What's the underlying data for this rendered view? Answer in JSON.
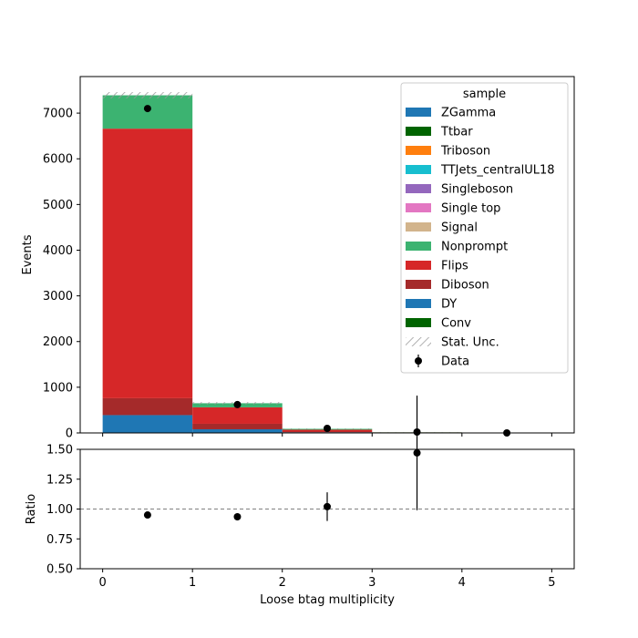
{
  "chart_data": [
    {
      "type": "bar",
      "stacked": true,
      "ylabel": "Events",
      "ylim": [
        0,
        7800
      ],
      "xlim": [
        -0.25,
        5.25
      ],
      "y_ticks": [
        0,
        1000,
        2000,
        3000,
        4000,
        5000,
        6000,
        7000
      ],
      "bin_edges": [
        0,
        1,
        2,
        3,
        4,
        5
      ],
      "legend": {
        "title": "sample",
        "position": "top-right"
      },
      "series": [
        {
          "name": "ZGamma",
          "color": "#1f77b4",
          "values": [
            0,
            0,
            0,
            0,
            0
          ]
        },
        {
          "name": "Ttbar",
          "color": "#006400",
          "values": [
            0,
            0,
            0,
            0,
            0
          ]
        },
        {
          "name": "Triboson",
          "color": "#ff7f0e",
          "values": [
            0,
            0,
            0,
            0,
            0
          ]
        },
        {
          "name": "TTJets_centralUL18",
          "color": "#17becf",
          "values": [
            0,
            0,
            0,
            0,
            0
          ]
        },
        {
          "name": "Singleboson",
          "color": "#9467bd",
          "values": [
            0,
            0,
            0,
            0,
            0
          ]
        },
        {
          "name": "Single top",
          "color": "#e377c2",
          "values": [
            0,
            0,
            0,
            0,
            0
          ]
        },
        {
          "name": "Signal",
          "color": "#d2b48c",
          "values": [
            0,
            0,
            0,
            0,
            0
          ]
        },
        {
          "name": "Nonprompt",
          "color": "#3cb371",
          "values": [
            730,
            90,
            20,
            3,
            1
          ]
        },
        {
          "name": "Flips",
          "color": "#d62728",
          "values": [
            5900,
            360,
            40,
            10,
            1
          ]
        },
        {
          "name": "Diboson",
          "color": "#a52a2a",
          "values": [
            370,
            120,
            15,
            2,
            0
          ]
        },
        {
          "name": "DY",
          "color": "#1f77b4",
          "values": [
            390,
            80,
            15,
            0,
            0
          ]
        },
        {
          "name": "Conv",
          "color": "#006400",
          "values": [
            0,
            0,
            0,
            0,
            0
          ]
        }
      ],
      "stat_unc": {
        "name": "Stat. Unc.",
        "values": [
          70,
          25,
          8,
          3,
          0
        ]
      },
      "data": {
        "name": "Data",
        "x": [
          0.5,
          1.5,
          2.5,
          3.5,
          4.5
        ],
        "y": [
          7100,
          620,
          100,
          20,
          0
        ]
      }
    },
    {
      "type": "scatter",
      "ylabel": "Ratio",
      "xlabel": "Loose btag multiplicity",
      "ylim": [
        0.5,
        1.5
      ],
      "xlim": [
        -0.25,
        5.25
      ],
      "x_ticks": [
        0,
        1,
        2,
        3,
        4,
        5
      ],
      "y_ticks": [
        "0.50",
        "0.75",
        "1.00",
        "1.25",
        "1.50"
      ],
      "reference_line": 1.0,
      "points": [
        {
          "x": 0.5,
          "y": 0.95,
          "err": 0.01
        },
        {
          "x": 1.5,
          "y": 0.935,
          "err": 0.03
        },
        {
          "x": 2.5,
          "y": 1.02,
          "err": 0.12
        },
        {
          "x": 3.5,
          "y": 1.47,
          "err": 0.48
        }
      ]
    }
  ]
}
